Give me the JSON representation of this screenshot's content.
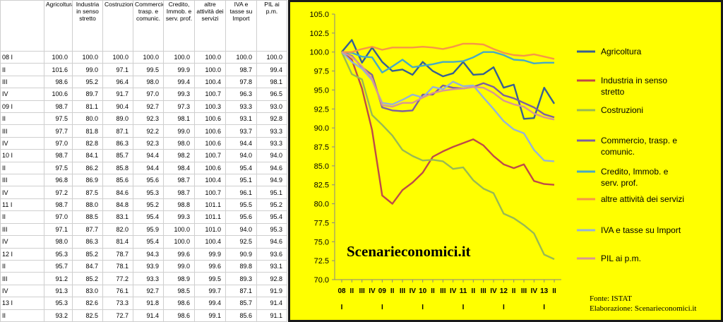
{
  "table": {
    "headers": [
      "",
      "Agricoltura",
      "Industria in senso stretto",
      "Costruzioni",
      "Commercio, trasp. e comunic.",
      "Credito, Immob. e serv. prof.",
      "altre attività dei servizi",
      "IVA e tasse su Import",
      "PIL ai p.m."
    ],
    "rows": [
      [
        "08 I",
        "100.0",
        "100.0",
        "100.0",
        "100.0",
        "100.0",
        "100.0",
        "100.0",
        "100.0"
      ],
      [
        "II",
        "101.6",
        "99.0",
        "97.1",
        "99.5",
        "99.9",
        "100.0",
        "98.7",
        "99.4"
      ],
      [
        "III",
        "98.6",
        "95.2",
        "96.4",
        "98.0",
        "99.4",
        "100.4",
        "97.8",
        "98.1"
      ],
      [
        "IV",
        "100.6",
        "89.7",
        "91.7",
        "97.0",
        "99.3",
        "100.7",
        "96.3",
        "96.5"
      ],
      [
        "09 I",
        "98.7",
        "81.1",
        "90.4",
        "92.7",
        "97.3",
        "100.3",
        "93.3",
        "93.0"
      ],
      [
        "II",
        "97.5",
        "80.0",
        "89.0",
        "92.3",
        "98.1",
        "100.6",
        "93.1",
        "92.8"
      ],
      [
        "III",
        "97.7",
        "81.8",
        "87.1",
        "92.2",
        "99.0",
        "100.6",
        "93.7",
        "93.3"
      ],
      [
        "IV",
        "97.0",
        "82.8",
        "86.3",
        "92.3",
        "98.0",
        "100.6",
        "94.4",
        "93.3"
      ],
      [
        "10 I",
        "98.7",
        "84.1",
        "85.7",
        "94.4",
        "98.2",
        "100.7",
        "94.0",
        "94.0"
      ],
      [
        "II",
        "97.5",
        "86.2",
        "85.8",
        "94.4",
        "98.4",
        "100.6",
        "95.4",
        "94.6"
      ],
      [
        "III",
        "96.8",
        "86.9",
        "85.6",
        "95.6",
        "98.7",
        "100.4",
        "95.1",
        "94.9"
      ],
      [
        "IV",
        "97.2",
        "87.5",
        "84.6",
        "95.3",
        "98.7",
        "100.7",
        "96.1",
        "95.1"
      ],
      [
        "11 I",
        "98.7",
        "88.0",
        "84.8",
        "95.2",
        "98.8",
        "101.1",
        "95.5",
        "95.2"
      ],
      [
        "II",
        "97.0",
        "88.5",
        "83.1",
        "95.4",
        "99.3",
        "101.1",
        "95.6",
        "95.4"
      ],
      [
        "III",
        "97.1",
        "87.7",
        "82.0",
        "95.9",
        "100.0",
        "101.0",
        "94.0",
        "95.3"
      ],
      [
        "IV",
        "98.0",
        "86.3",
        "81.4",
        "95.4",
        "100.0",
        "100.4",
        "92.5",
        "94.6"
      ],
      [
        "12 I",
        "95.3",
        "85.2",
        "78.7",
        "94.3",
        "99.6",
        "99.9",
        "90.9",
        "93.6"
      ],
      [
        "II",
        "95.7",
        "84.7",
        "78.1",
        "93.9",
        "99.0",
        "99.6",
        "89.8",
        "93.1"
      ],
      [
        "III",
        "91.2",
        "85.2",
        "77.2",
        "93.3",
        "98.9",
        "99.5",
        "89.3",
        "92.8"
      ],
      [
        "IV",
        "91.3",
        "83.0",
        "76.1",
        "92.7",
        "98.5",
        "99.7",
        "87.1",
        "91.9"
      ],
      [
        "13 I",
        "95.3",
        "82.6",
        "73.3",
        "91.8",
        "98.6",
        "99.4",
        "85.7",
        "91.4"
      ],
      [
        "II",
        "93.2",
        "82.5",
        "72.7",
        "91.4",
        "98.6",
        "99.1",
        "85.6",
        "91.1"
      ]
    ]
  },
  "chart_data": {
    "type": "line",
    "categories": [
      "08 I",
      "II",
      "III",
      "IV",
      "09 I",
      "II",
      "III",
      "IV",
      "10 I",
      "II",
      "III",
      "IV",
      "11 I",
      "II",
      "III",
      "IV",
      "12 I",
      "II",
      "III",
      "IV",
      "13 I",
      "II"
    ],
    "x_tick_labels": [
      "08",
      "II",
      "III",
      "IV",
      "09",
      "II",
      "III",
      "IV",
      "10",
      "II",
      "III",
      "IV",
      "11",
      "II",
      "III",
      "IV",
      "12",
      "II",
      "III",
      "IV",
      "13",
      "II"
    ],
    "year_marker": "I",
    "ylim": [
      70.0,
      105.0
    ],
    "yticks": [
      "105.0",
      "102.5",
      "100.0",
      "97.5",
      "95.0",
      "92.5",
      "90.0",
      "87.5",
      "85.0",
      "82.5",
      "80.0",
      "77.5",
      "75.0",
      "72.5",
      "70.0"
    ],
    "legend_position": "right",
    "series": [
      {
        "name": "Agricoltura",
        "color": "#376092",
        "values": [
          100.0,
          101.6,
          98.6,
          100.6,
          98.7,
          97.5,
          97.7,
          97.0,
          98.7,
          97.5,
          96.8,
          97.2,
          98.7,
          97.0,
          97.1,
          98.0,
          95.3,
          95.7,
          91.2,
          91.3,
          95.3,
          93.2
        ]
      },
      {
        "name": "Industria in senso stretto",
        "color": "#be4b48",
        "values": [
          100.0,
          99.0,
          95.2,
          89.7,
          81.1,
          80.0,
          81.8,
          82.8,
          84.1,
          86.2,
          86.9,
          87.5,
          88.0,
          88.5,
          87.7,
          86.3,
          85.2,
          84.7,
          85.2,
          83.0,
          82.6,
          82.5
        ]
      },
      {
        "name": "Costruzioni",
        "color": "#98b954",
        "values": [
          100.0,
          97.1,
          96.4,
          91.7,
          90.4,
          89.0,
          87.1,
          86.3,
          85.7,
          85.8,
          85.6,
          84.6,
          84.8,
          83.1,
          82.0,
          81.4,
          78.7,
          78.1,
          77.2,
          76.1,
          73.3,
          72.7
        ]
      },
      {
        "name": "Commercio, trasp. e comunic.",
        "color": "#7d60a0",
        "values": [
          100.0,
          99.5,
          98.0,
          97.0,
          92.7,
          92.3,
          92.2,
          92.3,
          94.4,
          94.4,
          95.6,
          95.3,
          95.2,
          95.4,
          95.9,
          95.4,
          94.3,
          93.9,
          93.3,
          92.7,
          91.8,
          91.4
        ]
      },
      {
        "name": "Credito, Immob. e serv. prof.",
        "color": "#46aac5",
        "values": [
          100.0,
          99.9,
          99.4,
          99.3,
          97.3,
          98.1,
          99.0,
          98.0,
          98.2,
          98.4,
          98.7,
          98.7,
          98.8,
          99.3,
          100.0,
          100.0,
          99.6,
          99.0,
          98.9,
          98.5,
          98.6,
          98.6
        ]
      },
      {
        "name": "altre attività  dei servizi",
        "color": "#f79646",
        "values": [
          100.0,
          100.0,
          100.4,
          100.7,
          100.3,
          100.6,
          100.6,
          100.6,
          100.7,
          100.6,
          100.4,
          100.7,
          101.1,
          101.1,
          101.0,
          100.4,
          99.9,
          99.6,
          99.5,
          99.7,
          99.4,
          99.1
        ]
      },
      {
        "name": "IVA e tasse su Import",
        "color": "#95b3d7",
        "values": [
          100.0,
          98.7,
          97.8,
          96.3,
          93.3,
          93.1,
          93.7,
          94.4,
          94.0,
          95.4,
          95.1,
          96.1,
          95.5,
          95.6,
          94.0,
          92.5,
          90.9,
          89.8,
          89.3,
          87.1,
          85.7,
          85.6
        ]
      },
      {
        "name": "PIL ai p.m.",
        "color": "#d99694",
        "values": [
          100.0,
          99.4,
          98.1,
          96.5,
          93.0,
          92.8,
          93.3,
          93.3,
          94.0,
          94.6,
          94.9,
          95.1,
          95.2,
          95.4,
          95.3,
          94.6,
          93.6,
          93.1,
          92.8,
          91.9,
          91.4,
          91.1
        ]
      }
    ],
    "watermark": "Scenarieconomici.it",
    "source": "Fonte: ISTAT",
    "credit": "Elaborazione: Scenarieconomici.it"
  }
}
